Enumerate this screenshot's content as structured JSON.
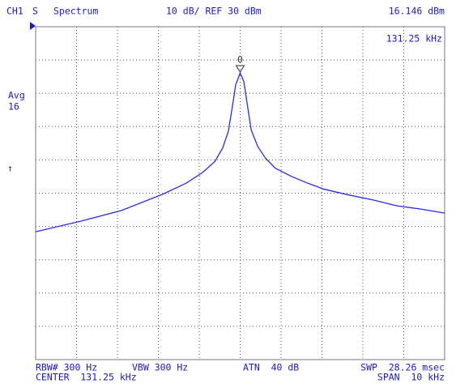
{
  "chart_data": {
    "type": "line",
    "header": {
      "channel": "CH1",
      "status": "S",
      "mode": "Spectrum",
      "scale": "10 dB/ REF 30 dBm",
      "marker_level": "16.146 dBm",
      "marker_freq": "131.25 kHz"
    },
    "side": {
      "avg_label": "Avg",
      "avg_count": "16",
      "arrow": "↑"
    },
    "footer": {
      "rbw": "RBW# 300 Hz",
      "vbw": "VBW 300 Hz",
      "atn": "ATN  40 dB",
      "swp": "SWP  28.26 msec",
      "center": "CENTER  131.25 kHz",
      "span": "SPAN  10 kHz"
    },
    "xlim": [
      126.25,
      136.25
    ],
    "ylim": [
      -70,
      30
    ],
    "xticks": [
      126.25,
      127.25,
      128.25,
      129.25,
      130.25,
      131.25,
      132.25,
      133.25,
      134.25,
      135.25,
      136.25
    ],
    "yticks": [
      -70,
      -60,
      -50,
      -40,
      -30,
      -20,
      -10,
      0,
      10,
      20,
      30
    ],
    "grid": true,
    "series": [
      {
        "color": "#2b2bf0",
        "x": [
          126.25,
          127.36,
          128.35,
          129.34,
          129.93,
          130.33,
          130.63,
          130.82,
          130.96,
          131.06,
          131.14,
          131.25,
          131.34,
          131.42,
          131.52,
          131.68,
          131.87,
          132.11,
          132.51,
          132.9,
          133.3,
          133.89,
          134.49,
          135.08,
          135.68,
          136.25
        ],
        "values": [
          -31.6,
          -28.4,
          -25.2,
          -20.4,
          -17,
          -13.8,
          -10.5,
          -6.5,
          -1.5,
          6,
          12.5,
          16.1,
          13.5,
          7,
          -1,
          -6,
          -9.5,
          -12.5,
          -15,
          -17,
          -18.8,
          -20.5,
          -22,
          -23.8,
          -24.8,
          -26
        ]
      }
    ],
    "marker": {
      "label": "0",
      "x": 131.25,
      "y": 16.146
    }
  }
}
